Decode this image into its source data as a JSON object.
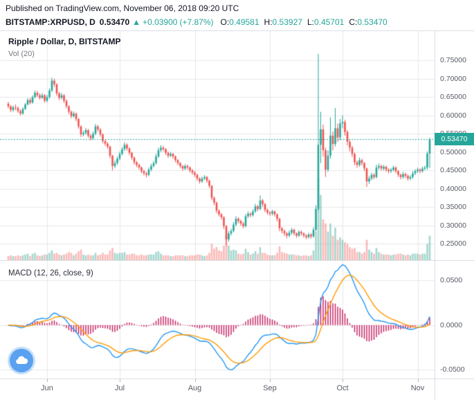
{
  "meta": {
    "published": "Published on TradingView.com, November 06, 2018 09:20 UTC"
  },
  "symbol_bar": {
    "symbol": "BITSTAMP:XRPUSD, D",
    "last": "0.53470",
    "arrow": "▲",
    "change": "+0.03900",
    "change_pct": "(+7.87%)",
    "o_label": "O:",
    "o": "0.49581",
    "h_label": "H:",
    "h": "0.53927",
    "l_label": "L:",
    "l": "0.45701",
    "c_label": "C:",
    "c": "0.53470"
  },
  "main_pane": {
    "title": "Ripple / Dollar, D, BITSTAMP",
    "vol_label": "Vol (20)",
    "price_axis": [
      "0.75000",
      "0.70000",
      "0.65000",
      "0.60000",
      "0.55000",
      "0.50000",
      "0.45000",
      "0.40000",
      "0.35000",
      "0.30000",
      "0.25000"
    ],
    "price_badge": "0.53470"
  },
  "macd_pane": {
    "title": "MACD (12, 26, close, 9)",
    "axis": [
      "0.0500",
      "0.0000",
      "-0.0500"
    ]
  },
  "time_axis": [
    "Jun",
    "Jul",
    "Aug",
    "Sep",
    "Oct",
    "Nov"
  ],
  "colors": {
    "up": "#26a69a",
    "down": "#ef5350",
    "vol_up": "rgba(76,175,158,0.5)",
    "vol_down": "rgba(239,83,80,0.4)",
    "grid": "#e7e7e9",
    "last_line": "#26a69a",
    "macd_line": "#2196f3",
    "macd_signal": "#ff9800",
    "macd_hist": "#c2185b",
    "badge_bg": "#26a69a",
    "header_green": "#26a69a"
  },
  "chart_data": {
    "type": "candlestick",
    "title": "Ripple / Dollar, D, BITSTAMP",
    "symbol": "BITSTAMP:XRPUSD",
    "interval": "D",
    "last_price": 0.5347,
    "price_domain": [
      0.205,
      0.83
    ],
    "price_gridlines": [
      0.75,
      0.7,
      0.65,
      0.6,
      0.55,
      0.5,
      0.45,
      0.4,
      0.35,
      0.3,
      0.25
    ],
    "macd_domain": [
      -0.06,
      0.072
    ],
    "macd_gridlines": [
      0.05,
      0,
      -0.05
    ],
    "macd_params": [
      12,
      26,
      9
    ],
    "months": [
      {
        "label": "Jun",
        "candle": 16
      },
      {
        "label": "Jul",
        "candle": 46
      },
      {
        "label": "Aug",
        "candle": 77
      },
      {
        "label": "Sep",
        "candle": 108
      },
      {
        "label": "Oct",
        "candle": 138
      },
      {
        "label": "Nov",
        "candle": 169
      }
    ],
    "candles_format": [
      "open",
      "high",
      "low",
      "close",
      "volume"
    ],
    "candles": [
      [
        0.632,
        0.637,
        0.619,
        0.625,
        0.5
      ],
      [
        0.625,
        0.628,
        0.609,
        0.615,
        0.6
      ],
      [
        0.615,
        0.627,
        0.61,
        0.622,
        0.5
      ],
      [
        0.622,
        0.63,
        0.614,
        0.62,
        0.5
      ],
      [
        0.62,
        0.625,
        0.607,
        0.612,
        0.6
      ],
      [
        0.612,
        0.616,
        0.6,
        0.605,
        0.5
      ],
      [
        0.605,
        0.622,
        0.602,
        0.618,
        0.6
      ],
      [
        0.618,
        0.634,
        0.615,
        0.63,
        0.7
      ],
      [
        0.63,
        0.647,
        0.627,
        0.642,
        0.8
      ],
      [
        0.642,
        0.648,
        0.63,
        0.635,
        0.5
      ],
      [
        0.635,
        0.655,
        0.632,
        0.65,
        0.8
      ],
      [
        0.65,
        0.668,
        0.647,
        0.662,
        0.9
      ],
      [
        0.662,
        0.667,
        0.65,
        0.655,
        0.6
      ],
      [
        0.655,
        0.66,
        0.643,
        0.648,
        0.5
      ],
      [
        0.648,
        0.661,
        0.645,
        0.655,
        0.6
      ],
      [
        0.655,
        0.658,
        0.635,
        0.64,
        0.7
      ],
      [
        0.64,
        0.656,
        0.636,
        0.65,
        0.7
      ],
      [
        0.65,
        0.674,
        0.646,
        0.668,
        0.9
      ],
      [
        0.668,
        0.703,
        0.664,
        0.695,
        1.2
      ],
      [
        0.695,
        0.7,
        0.678,
        0.685,
        0.8
      ],
      [
        0.685,
        0.688,
        0.654,
        0.66,
        0.9
      ],
      [
        0.66,
        0.664,
        0.642,
        0.648,
        0.7
      ],
      [
        0.648,
        0.662,
        0.644,
        0.655,
        0.6
      ],
      [
        0.655,
        0.658,
        0.634,
        0.64,
        0.7
      ],
      [
        0.64,
        0.644,
        0.619,
        0.625,
        0.8
      ],
      [
        0.625,
        0.628,
        0.604,
        0.61,
        1.0
      ],
      [
        0.61,
        0.614,
        0.592,
        0.598,
        0.9
      ],
      [
        0.598,
        0.611,
        0.594,
        0.605,
        0.6
      ],
      [
        0.605,
        0.608,
        0.584,
        0.59,
        0.8
      ],
      [
        0.59,
        0.593,
        0.564,
        0.57,
        1.1
      ],
      [
        0.57,
        0.573,
        0.541,
        0.548,
        1.3
      ],
      [
        0.548,
        0.558,
        0.543,
        0.552,
        0.7
      ],
      [
        0.552,
        0.566,
        0.548,
        0.56,
        0.6
      ],
      [
        0.56,
        0.563,
        0.539,
        0.545,
        0.7
      ],
      [
        0.545,
        0.549,
        0.532,
        0.538,
        0.6
      ],
      [
        0.538,
        0.556,
        0.534,
        0.55,
        0.6
      ],
      [
        0.55,
        0.577,
        0.546,
        0.57,
        0.9
      ],
      [
        0.57,
        0.574,
        0.556,
        0.562,
        0.6
      ],
      [
        0.562,
        0.565,
        0.542,
        0.548,
        0.7
      ],
      [
        0.548,
        0.551,
        0.524,
        0.53,
        0.9
      ],
      [
        0.53,
        0.534,
        0.517,
        0.523,
        0.7
      ],
      [
        0.523,
        0.527,
        0.509,
        0.515,
        0.7
      ],
      [
        0.515,
        0.518,
        0.483,
        0.49,
        1.2
      ],
      [
        0.49,
        0.493,
        0.45,
        0.462,
        1.5
      ],
      [
        0.462,
        0.477,
        0.456,
        0.47,
        0.9
      ],
      [
        0.47,
        0.488,
        0.465,
        0.482,
        0.8
      ],
      [
        0.482,
        0.501,
        0.477,
        0.495,
        0.9
      ],
      [
        0.495,
        0.514,
        0.491,
        0.508,
        0.9
      ],
      [
        0.508,
        0.527,
        0.503,
        0.52,
        1.0
      ],
      [
        0.52,
        0.524,
        0.504,
        0.51,
        0.7
      ],
      [
        0.51,
        0.513,
        0.492,
        0.498,
        0.7
      ],
      [
        0.498,
        0.501,
        0.479,
        0.485,
        0.8
      ],
      [
        0.485,
        0.488,
        0.466,
        0.472,
        0.8
      ],
      [
        0.472,
        0.476,
        0.459,
        0.465,
        0.6
      ],
      [
        0.465,
        0.469,
        0.452,
        0.458,
        0.6
      ],
      [
        0.458,
        0.461,
        0.442,
        0.448,
        0.7
      ],
      [
        0.448,
        0.452,
        0.436,
        0.442,
        0.6
      ],
      [
        0.442,
        0.446,
        0.431,
        0.438,
        0.6
      ],
      [
        0.438,
        0.458,
        0.434,
        0.452,
        0.7
      ],
      [
        0.452,
        0.468,
        0.448,
        0.462,
        0.7
      ],
      [
        0.462,
        0.476,
        0.458,
        0.47,
        0.7
      ],
      [
        0.47,
        0.495,
        0.466,
        0.488,
        1.0
      ],
      [
        0.488,
        0.512,
        0.484,
        0.505,
        1.1
      ],
      [
        0.505,
        0.519,
        0.5,
        0.512,
        0.8
      ],
      [
        0.512,
        0.517,
        0.502,
        0.508,
        0.6
      ],
      [
        0.508,
        0.511,
        0.492,
        0.498,
        0.6
      ],
      [
        0.498,
        0.502,
        0.484,
        0.49,
        0.6
      ],
      [
        0.49,
        0.5,
        0.486,
        0.495,
        0.5
      ],
      [
        0.495,
        0.498,
        0.482,
        0.488,
        0.5
      ],
      [
        0.488,
        0.491,
        0.472,
        0.478,
        0.6
      ],
      [
        0.478,
        0.481,
        0.464,
        0.47,
        0.6
      ],
      [
        0.47,
        0.473,
        0.456,
        0.462,
        0.6
      ],
      [
        0.462,
        0.465,
        0.449,
        0.455,
        0.6
      ],
      [
        0.455,
        0.467,
        0.451,
        0.462,
        0.5
      ],
      [
        0.462,
        0.466,
        0.452,
        0.458,
        0.5
      ],
      [
        0.458,
        0.461,
        0.444,
        0.45,
        0.6
      ],
      [
        0.45,
        0.454,
        0.438,
        0.444,
        0.6
      ],
      [
        0.444,
        0.448,
        0.432,
        0.438,
        0.6
      ],
      [
        0.438,
        0.441,
        0.422,
        0.428,
        0.7
      ],
      [
        0.428,
        0.431,
        0.414,
        0.42,
        0.7
      ],
      [
        0.42,
        0.433,
        0.416,
        0.428,
        0.6
      ],
      [
        0.428,
        0.437,
        0.424,
        0.432,
        0.5
      ],
      [
        0.432,
        0.435,
        0.416,
        0.422,
        0.6
      ],
      [
        0.422,
        0.425,
        0.402,
        0.408,
        0.9
      ],
      [
        0.408,
        0.41,
        0.368,
        0.375,
        2.0
      ],
      [
        0.375,
        0.379,
        0.355,
        0.362,
        1.4
      ],
      [
        0.362,
        0.365,
        0.333,
        0.34,
        1.6
      ],
      [
        0.34,
        0.344,
        0.324,
        0.33,
        1.2
      ],
      [
        0.33,
        0.334,
        0.315,
        0.322,
        1.1
      ],
      [
        0.322,
        0.325,
        0.29,
        0.298,
        1.8
      ],
      [
        0.298,
        0.301,
        0.245,
        0.262,
        3.0
      ],
      [
        0.262,
        0.284,
        0.256,
        0.278,
        1.8
      ],
      [
        0.278,
        0.291,
        0.272,
        0.285,
        1.2
      ],
      [
        0.285,
        0.309,
        0.281,
        0.302,
        1.3
      ],
      [
        0.302,
        0.325,
        0.298,
        0.318,
        1.2
      ],
      [
        0.318,
        0.322,
        0.306,
        0.312,
        0.8
      ],
      [
        0.312,
        0.316,
        0.299,
        0.305,
        0.7
      ],
      [
        0.305,
        0.309,
        0.292,
        0.298,
        0.8
      ],
      [
        0.298,
        0.331,
        0.294,
        0.325,
        1.4
      ],
      [
        0.325,
        0.338,
        0.32,
        0.332,
        1.0
      ],
      [
        0.332,
        0.336,
        0.322,
        0.328,
        0.7
      ],
      [
        0.328,
        0.344,
        0.324,
        0.338,
        0.8
      ],
      [
        0.338,
        0.359,
        0.334,
        0.352,
        1.1
      ],
      [
        0.352,
        0.356,
        0.339,
        0.345,
        0.8
      ],
      [
        0.345,
        0.382,
        0.341,
        0.368,
        1.6
      ],
      [
        0.368,
        0.372,
        0.351,
        0.358,
        0.9
      ],
      [
        0.358,
        0.361,
        0.336,
        0.342,
        0.9
      ],
      [
        0.342,
        0.346,
        0.329,
        0.335,
        0.7
      ],
      [
        0.335,
        0.339,
        0.326,
        0.332,
        0.6
      ],
      [
        0.332,
        0.343,
        0.327,
        0.338,
        0.6
      ],
      [
        0.338,
        0.341,
        0.324,
        0.33,
        0.6
      ],
      [
        0.33,
        0.333,
        0.311,
        0.318,
        0.9
      ],
      [
        0.318,
        0.321,
        0.284,
        0.292,
        1.7
      ],
      [
        0.292,
        0.296,
        0.278,
        0.285,
        1.0
      ],
      [
        0.285,
        0.289,
        0.271,
        0.278,
        0.9
      ],
      [
        0.278,
        0.282,
        0.265,
        0.272,
        0.8
      ],
      [
        0.272,
        0.286,
        0.268,
        0.28,
        0.7
      ],
      [
        0.28,
        0.293,
        0.275,
        0.288,
        0.7
      ],
      [
        0.288,
        0.291,
        0.272,
        0.278,
        0.7
      ],
      [
        0.278,
        0.281,
        0.266,
        0.272,
        0.6
      ],
      [
        0.272,
        0.287,
        0.268,
        0.282,
        0.6
      ],
      [
        0.282,
        0.286,
        0.272,
        0.278,
        0.5
      ],
      [
        0.278,
        0.281,
        0.266,
        0.272,
        0.6
      ],
      [
        0.272,
        0.276,
        0.262,
        0.268,
        0.6
      ],
      [
        0.268,
        0.28,
        0.264,
        0.275,
        0.5
      ],
      [
        0.275,
        0.279,
        0.264,
        0.27,
        0.6
      ],
      [
        0.27,
        0.295,
        0.266,
        0.288,
        1.2
      ],
      [
        0.288,
        0.355,
        0.284,
        0.345,
        3.5
      ],
      [
        0.345,
        0.768,
        0.34,
        0.52,
        10.0
      ],
      [
        0.52,
        0.61,
        0.47,
        0.562,
        8.0
      ],
      [
        0.562,
        0.575,
        0.488,
        0.505,
        5.0
      ],
      [
        0.505,
        0.512,
        0.432,
        0.452,
        4.5
      ],
      [
        0.452,
        0.505,
        0.446,
        0.49,
        3.5
      ],
      [
        0.49,
        0.595,
        0.482,
        0.545,
        4.5
      ],
      [
        0.545,
        0.556,
        0.505,
        0.522,
        3.0
      ],
      [
        0.522,
        0.62,
        0.515,
        0.565,
        4.0
      ],
      [
        0.565,
        0.578,
        0.528,
        0.54,
        2.5
      ],
      [
        0.54,
        0.59,
        0.532,
        0.578,
        2.8
      ],
      [
        0.578,
        0.6,
        0.565,
        0.582,
        2.5
      ],
      [
        0.582,
        0.588,
        0.545,
        0.555,
        2.2
      ],
      [
        0.555,
        0.56,
        0.518,
        0.528,
        2.0
      ],
      [
        0.528,
        0.533,
        0.502,
        0.512,
        1.6
      ],
      [
        0.512,
        0.517,
        0.487,
        0.495,
        1.4
      ],
      [
        0.495,
        0.499,
        0.464,
        0.472,
        1.5
      ],
      [
        0.472,
        0.477,
        0.457,
        0.465,
        1.0
      ],
      [
        0.465,
        0.485,
        0.46,
        0.478,
        1.0
      ],
      [
        0.478,
        0.482,
        0.463,
        0.47,
        0.8
      ],
      [
        0.47,
        0.473,
        0.448,
        0.455,
        1.0
      ],
      [
        0.455,
        0.458,
        0.405,
        0.42,
        2.5
      ],
      [
        0.42,
        0.435,
        0.413,
        0.428,
        1.3
      ],
      [
        0.428,
        0.444,
        0.423,
        0.438,
        1.0
      ],
      [
        0.438,
        0.442,
        0.426,
        0.432,
        0.8
      ],
      [
        0.432,
        0.466,
        0.428,
        0.458,
        1.5
      ],
      [
        0.458,
        0.469,
        0.452,
        0.462,
        1.0
      ],
      [
        0.462,
        0.466,
        0.449,
        0.455,
        0.8
      ],
      [
        0.455,
        0.465,
        0.45,
        0.46,
        0.7
      ],
      [
        0.46,
        0.463,
        0.446,
        0.452,
        0.7
      ],
      [
        0.452,
        0.456,
        0.442,
        0.448,
        0.7
      ],
      [
        0.448,
        0.457,
        0.443,
        0.452,
        0.6
      ],
      [
        0.452,
        0.463,
        0.447,
        0.458,
        0.7
      ],
      [
        0.458,
        0.461,
        0.442,
        0.448,
        0.7
      ],
      [
        0.448,
        0.451,
        0.432,
        0.438,
        0.8
      ],
      [
        0.438,
        0.442,
        0.425,
        0.432,
        0.8
      ],
      [
        0.432,
        0.446,
        0.427,
        0.44,
        0.7
      ],
      [
        0.44,
        0.444,
        0.429,
        0.435,
        0.6
      ],
      [
        0.435,
        0.439,
        0.422,
        0.428,
        0.7
      ],
      [
        0.428,
        0.437,
        0.423,
        0.432,
        0.6
      ],
      [
        0.432,
        0.448,
        0.427,
        0.442,
        0.8
      ],
      [
        0.442,
        0.453,
        0.437,
        0.448,
        0.8
      ],
      [
        0.448,
        0.457,
        0.443,
        0.452,
        0.8
      ],
      [
        0.452,
        0.456,
        0.442,
        0.448,
        0.7
      ],
      [
        0.448,
        0.46,
        0.444,
        0.455,
        0.8
      ],
      [
        0.455,
        0.463,
        0.45,
        0.458,
        0.8
      ],
      [
        0.458,
        0.502,
        0.452,
        0.496,
        2.0
      ],
      [
        0.49581,
        0.53927,
        0.45701,
        0.5347,
        3.0
      ]
    ]
  }
}
